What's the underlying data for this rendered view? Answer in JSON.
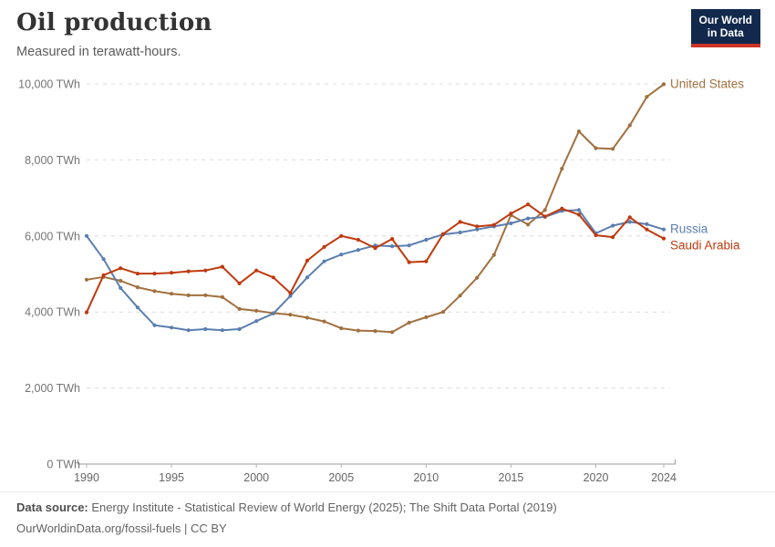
{
  "header": {
    "title": "Oil production",
    "subtitle": "Measured in terawatt-hours."
  },
  "logo": {
    "line1": "Our World",
    "line2": "in Data",
    "bg_color": "#12294d",
    "accent_color": "#cc3425"
  },
  "chart_data": {
    "type": "line",
    "title": "Oil production",
    "unit": "TWh",
    "x": [
      1990,
      1991,
      1992,
      1993,
      1994,
      1995,
      1996,
      1997,
      1998,
      1999,
      2000,
      2001,
      2002,
      2003,
      2004,
      2005,
      2006,
      2007,
      2008,
      2009,
      2010,
      2011,
      2012,
      2013,
      2014,
      2015,
      2016,
      2017,
      2018,
      2019,
      2020,
      2021,
      2022,
      2023,
      2024
    ],
    "series": [
      {
        "name": "United States",
        "color": "#a1703f",
        "label_dy": 4,
        "values": [
          4850,
          4920,
          4820,
          4650,
          4550,
          4480,
          4440,
          4440,
          4390,
          4080,
          4030,
          3970,
          3930,
          3850,
          3750,
          3570,
          3510,
          3500,
          3470,
          3720,
          3860,
          4000,
          4430,
          4900,
          5500,
          6550,
          6300,
          6680,
          7770,
          8750,
          8310,
          8290,
          8910,
          9660,
          9990
        ]
      },
      {
        "name": "Russia",
        "color": "#5b7eb0",
        "label_dy": 4,
        "values": [
          6000,
          5390,
          4630,
          4120,
          3650,
          3590,
          3520,
          3550,
          3520,
          3550,
          3760,
          3960,
          4420,
          4910,
          5330,
          5510,
          5630,
          5750,
          5730,
          5750,
          5900,
          6040,
          6090,
          6170,
          6250,
          6330,
          6460,
          6500,
          6660,
          6680,
          6070,
          6270,
          6370,
          6310,
          6170
        ]
      },
      {
        "name": "Saudi Arabia",
        "color": "#bf3a0e",
        "label_dy": 12,
        "values": [
          3990,
          4970,
          5150,
          5010,
          5010,
          5030,
          5070,
          5090,
          5190,
          4750,
          5090,
          4910,
          4500,
          5350,
          5710,
          6000,
          5900,
          5680,
          5920,
          5310,
          5330,
          6050,
          6370,
          6250,
          6290,
          6590,
          6830,
          6510,
          6720,
          6560,
          6020,
          5970,
          6490,
          6170,
          5930
        ]
      }
    ],
    "ylim": [
      0,
      10000
    ],
    "yticks": [
      0,
      2000,
      4000,
      6000,
      8000,
      10000
    ],
    "ytick_labels": [
      "0 TWh",
      "2,000 TWh",
      "4,000 TWh",
      "6,000 TWh",
      "8,000 TWh",
      "10,000 TWh"
    ],
    "xticks": [
      1990,
      1995,
      2000,
      2005,
      2010,
      2015,
      2020,
      2024
    ],
    "xtick_labels": [
      "1990",
      "1995",
      "2000",
      "2005",
      "2010",
      "2015",
      "2020",
      "2024"
    ],
    "grid": "horizontal-dashed",
    "legend_position": "end-of-line-labels"
  },
  "footer": {
    "source_label": "Data source:",
    "source_text": " Energy Institute - Statistical Review of World Energy (2025); The Shift Data Portal (2019)",
    "line2": "OurWorldinData.org/fossil-fuels | CC BY"
  }
}
